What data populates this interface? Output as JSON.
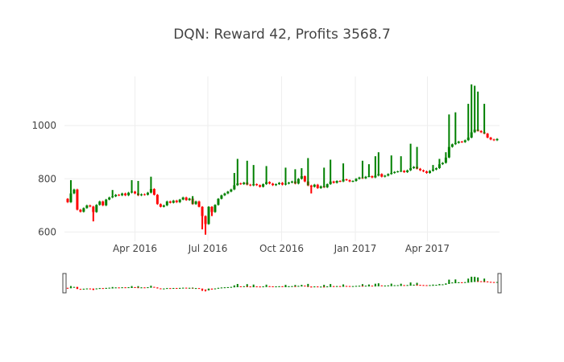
{
  "chart_data": {
    "type": "candlestick",
    "title": "DQN: Reward 42, Profits 3568.7",
    "xlabel": "",
    "ylabel": "",
    "x_range": [
      "2016-01-04",
      "2017-06-30"
    ],
    "x_ticks": [
      {
        "date": "2016-04-01",
        "label": "Apr 2016"
      },
      {
        "date": "2016-07-01",
        "label": "Jul 2016"
      },
      {
        "date": "2016-10-01",
        "label": "Oct 2016"
      },
      {
        "date": "2017-01-01",
        "label": "Jan 2017"
      },
      {
        "date": "2017-04-01",
        "label": "Apr 2017"
      }
    ],
    "ylim": [
      565,
      1185
    ],
    "y_ticks": [
      600,
      800,
      1000
    ],
    "grid": true,
    "rangeslider": true,
    "colors": {
      "increasing": "#008000",
      "decreasing": "#ff0000"
    },
    "series_close": [
      [
        "2016-01-04",
        725
      ],
      [
        "2016-01-08",
        712
      ],
      [
        "2016-01-12",
        745
      ],
      [
        "2016-01-16",
        760
      ],
      [
        "2016-01-20",
        684
      ],
      [
        "2016-01-24",
        676
      ],
      [
        "2016-01-28",
        690
      ],
      [
        "2016-02-01",
        700
      ],
      [
        "2016-02-05",
        696
      ],
      [
        "2016-02-09",
        675
      ],
      [
        "2016-02-13",
        702
      ],
      [
        "2016-02-17",
        715
      ],
      [
        "2016-02-21",
        700
      ],
      [
        "2016-02-25",
        722
      ],
      [
        "2016-02-29",
        730
      ],
      [
        "2016-03-04",
        734
      ],
      [
        "2016-03-08",
        740
      ],
      [
        "2016-03-12",
        738
      ],
      [
        "2016-03-16",
        745
      ],
      [
        "2016-03-20",
        738
      ],
      [
        "2016-03-24",
        748
      ],
      [
        "2016-03-28",
        752
      ],
      [
        "2016-04-01",
        745
      ],
      [
        "2016-04-05",
        738
      ],
      [
        "2016-04-09",
        742
      ],
      [
        "2016-04-13",
        740
      ],
      [
        "2016-04-17",
        748
      ],
      [
        "2016-04-21",
        762
      ],
      [
        "2016-04-25",
        740
      ],
      [
        "2016-04-29",
        705
      ],
      [
        "2016-05-03",
        695
      ],
      [
        "2016-05-07",
        700
      ],
      [
        "2016-05-11",
        715
      ],
      [
        "2016-05-15",
        710
      ],
      [
        "2016-05-19",
        718
      ],
      [
        "2016-05-23",
        712
      ],
      [
        "2016-05-27",
        722
      ],
      [
        "2016-05-31",
        730
      ],
      [
        "2016-06-04",
        720
      ],
      [
        "2016-06-08",
        726
      ],
      [
        "2016-06-12",
        705
      ],
      [
        "2016-06-16",
        715
      ],
      [
        "2016-06-20",
        695
      ],
      [
        "2016-06-24",
        660
      ],
      [
        "2016-06-28",
        630
      ],
      [
        "2016-07-02",
        695
      ],
      [
        "2016-07-06",
        675
      ],
      [
        "2016-07-10",
        702
      ],
      [
        "2016-07-14",
        725
      ],
      [
        "2016-07-18",
        738
      ],
      [
        "2016-07-22",
        745
      ],
      [
        "2016-07-26",
        752
      ],
      [
        "2016-07-30",
        760
      ],
      [
        "2016-08-03",
        776
      ],
      [
        "2016-08-07",
        783
      ],
      [
        "2016-08-11",
        780
      ],
      [
        "2016-08-15",
        786
      ],
      [
        "2016-08-19",
        778
      ],
      [
        "2016-08-23",
        775
      ],
      [
        "2016-08-27",
        780
      ],
      [
        "2016-08-31",
        776
      ],
      [
        "2016-09-04",
        770
      ],
      [
        "2016-09-08",
        780
      ],
      [
        "2016-09-12",
        788
      ],
      [
        "2016-09-16",
        782
      ],
      [
        "2016-09-20",
        776
      ],
      [
        "2016-09-24",
        780
      ],
      [
        "2016-09-28",
        785
      ],
      [
        "2016-10-02",
        778
      ],
      [
        "2016-10-06",
        782
      ],
      [
        "2016-10-10",
        786
      ],
      [
        "2016-10-14",
        790
      ],
      [
        "2016-10-18",
        782
      ],
      [
        "2016-10-22",
        800
      ],
      [
        "2016-10-26",
        810
      ],
      [
        "2016-10-30",
        790
      ],
      [
        "2016-11-03",
        775
      ],
      [
        "2016-11-07",
        770
      ],
      [
        "2016-11-11",
        778
      ],
      [
        "2016-11-15",
        765
      ],
      [
        "2016-11-19",
        772
      ],
      [
        "2016-11-23",
        768
      ],
      [
        "2016-11-27",
        780
      ],
      [
        "2016-12-01",
        790
      ],
      [
        "2016-12-05",
        785
      ],
      [
        "2016-12-09",
        792
      ],
      [
        "2016-12-13",
        790
      ],
      [
        "2016-12-17",
        798
      ],
      [
        "2016-12-21",
        795
      ],
      [
        "2016-12-25",
        790
      ],
      [
        "2016-12-29",
        792
      ],
      [
        "2017-01-02",
        800
      ],
      [
        "2017-01-06",
        805
      ],
      [
        "2017-01-10",
        802
      ],
      [
        "2017-01-14",
        808
      ],
      [
        "2017-01-18",
        810
      ],
      [
        "2017-01-22",
        805
      ],
      [
        "2017-01-26",
        812
      ],
      [
        "2017-01-30",
        818
      ],
      [
        "2017-02-03",
        808
      ],
      [
        "2017-02-07",
        812
      ],
      [
        "2017-02-11",
        818
      ],
      [
        "2017-02-15",
        822
      ],
      [
        "2017-02-19",
        826
      ],
      [
        "2017-02-23",
        828
      ],
      [
        "2017-02-27",
        830
      ],
      [
        "2017-03-03",
        825
      ],
      [
        "2017-03-07",
        832
      ],
      [
        "2017-03-11",
        840
      ],
      [
        "2017-03-15",
        845
      ],
      [
        "2017-03-19",
        838
      ],
      [
        "2017-03-23",
        832
      ],
      [
        "2017-03-27",
        828
      ],
      [
        "2017-03-31",
        822
      ],
      [
        "2017-04-04",
        830
      ],
      [
        "2017-04-08",
        835
      ],
      [
        "2017-04-12",
        840
      ],
      [
        "2017-04-16",
        855
      ],
      [
        "2017-04-20",
        860
      ],
      [
        "2017-04-24",
        880
      ],
      [
        "2017-04-28",
        920
      ],
      [
        "2017-05-02",
        930
      ],
      [
        "2017-05-06",
        935
      ],
      [
        "2017-05-10",
        940
      ],
      [
        "2017-05-14",
        938
      ],
      [
        "2017-05-18",
        945
      ],
      [
        "2017-05-22",
        955
      ],
      [
        "2017-05-26",
        975
      ],
      [
        "2017-05-30",
        985
      ],
      [
        "2017-06-03",
        980
      ],
      [
        "2017-06-07",
        975
      ],
      [
        "2017-06-11",
        970
      ],
      [
        "2017-06-15",
        955
      ],
      [
        "2017-06-19",
        948
      ],
      [
        "2017-06-23",
        945
      ],
      [
        "2017-06-27",
        950
      ]
    ],
    "spikes": [
      [
        "2016-01-12",
        795
      ],
      [
        "2016-02-09",
        640
      ],
      [
        "2016-03-04",
        758
      ],
      [
        "2016-03-28",
        795
      ],
      [
        "2016-04-05",
        792
      ],
      [
        "2016-04-21",
        808
      ],
      [
        "2016-06-12",
        735
      ],
      [
        "2016-06-24",
        610
      ],
      [
        "2016-06-28",
        590
      ],
      [
        "2016-07-06",
        660
      ],
      [
        "2016-08-03",
        822
      ],
      [
        "2016-08-07",
        875
      ],
      [
        "2016-08-19",
        868
      ],
      [
        "2016-08-27",
        852
      ],
      [
        "2016-09-12",
        848
      ],
      [
        "2016-10-06",
        842
      ],
      [
        "2016-10-18",
        836
      ],
      [
        "2016-10-26",
        840
      ],
      [
        "2016-11-03",
        878
      ],
      [
        "2016-11-07",
        745
      ],
      [
        "2016-11-23",
        842
      ],
      [
        "2016-12-01",
        872
      ],
      [
        "2016-12-17",
        858
      ],
      [
        "2017-01-10",
        868
      ],
      [
        "2017-01-18",
        855
      ],
      [
        "2017-01-26",
        885
      ],
      [
        "2017-01-30",
        900
      ],
      [
        "2017-02-15",
        888
      ],
      [
        "2017-02-27",
        885
      ],
      [
        "2017-03-11",
        932
      ],
      [
        "2017-03-19",
        920
      ],
      [
        "2017-04-08",
        852
      ],
      [
        "2017-04-16",
        875
      ],
      [
        "2017-04-24",
        900
      ],
      [
        "2017-04-28",
        1042
      ],
      [
        "2017-05-06",
        1050
      ],
      [
        "2017-05-22",
        1082
      ],
      [
        "2017-05-26",
        1155
      ],
      [
        "2017-05-30",
        1150
      ],
      [
        "2017-06-03",
        1128
      ],
      [
        "2017-06-11",
        1082
      ]
    ]
  }
}
